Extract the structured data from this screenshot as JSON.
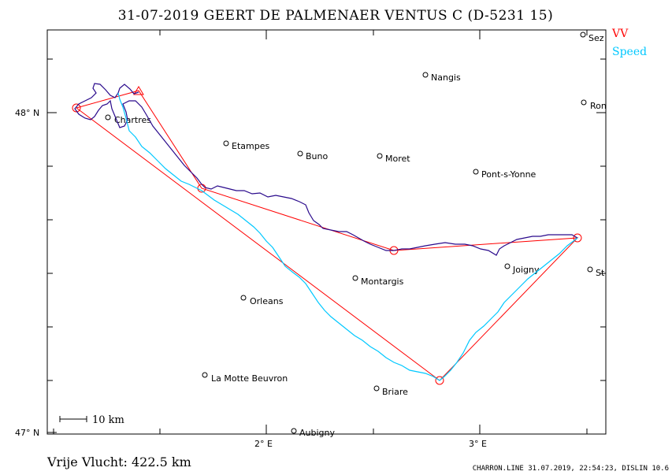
{
  "header": {
    "title": "31-07-2019    GEERT DE PALMENAER    VENTUS C (D-5231 15)"
  },
  "legend": {
    "vv_label": "VV",
    "speed_label": "Speed",
    "vv_color": "#ff0000",
    "speed_color": "#00c8ff",
    "track_color": "#2a0a8c"
  },
  "axes": {
    "lat_labels": [
      "48° N",
      "47° N"
    ],
    "lon_labels": [
      "2° E",
      "3° E"
    ]
  },
  "towns": [
    {
      "name": "Chartres"
    },
    {
      "name": "Etampes"
    },
    {
      "name": "Buno"
    },
    {
      "name": "Moret"
    },
    {
      "name": "Nangis"
    },
    {
      "name": "Pont-s-Yonne"
    },
    {
      "name": "Sez"
    },
    {
      "name": "Ron"
    },
    {
      "name": "Montargis"
    },
    {
      "name": "Joigny"
    },
    {
      "name": "St"
    },
    {
      "name": "Orleans"
    },
    {
      "name": "La Motte Beuvron"
    },
    {
      "name": "Briare"
    },
    {
      "name": "Aubigny"
    }
  ],
  "scale": {
    "label": "10  km"
  },
  "footer": {
    "distance": "Vrije Vlucht:  422.5 km",
    "meta": "CHARRON.LINE 31.07.2019, 22:54:23, DISLIN 10.6"
  }
}
